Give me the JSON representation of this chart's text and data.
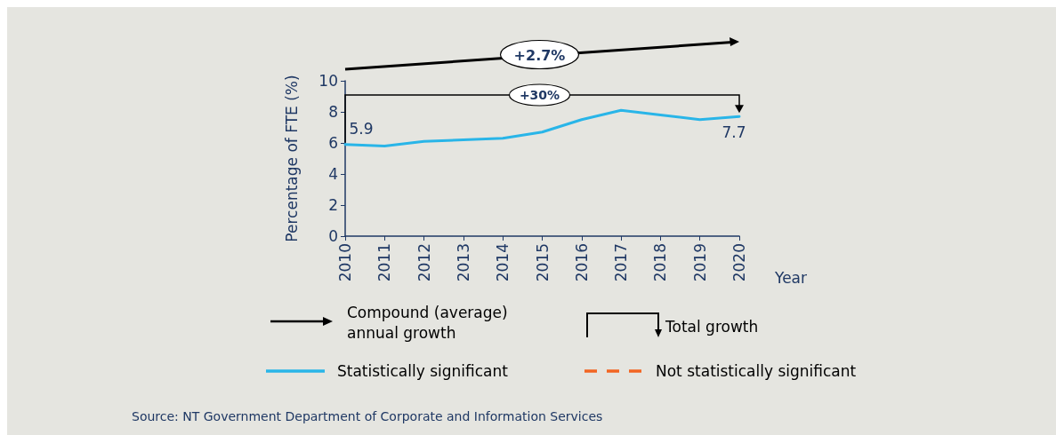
{
  "chart_data": {
    "type": "line",
    "xlabel": "Year",
    "ylabel": "Percentage of FTE (%)",
    "categories": [
      "2010",
      "2011",
      "2012",
      "2013",
      "2014",
      "2015",
      "2016",
      "2017",
      "2018",
      "2019",
      "2020"
    ],
    "ylim": [
      0,
      10
    ],
    "yticks": [
      0,
      2,
      4,
      6,
      8,
      10
    ],
    "grid": false,
    "legend": "bottom",
    "marker": "none",
    "series": [
      {
        "name": "Statistically significant",
        "color": "#29b5e8",
        "line_style": "solid",
        "values": [
          5.9,
          5.8,
          6.1,
          6.2,
          6.3,
          6.7,
          7.5,
          8.1,
          7.8,
          7.5,
          7.7
        ],
        "value_labels": [
          "5.9",
          null,
          null,
          null,
          null,
          null,
          null,
          null,
          null,
          null,
          "7.7"
        ]
      },
      {
        "name": "Not statistically significant",
        "color": "#f26522",
        "line_style": "dashed",
        "values": [
          null,
          null,
          null,
          null,
          null,
          null,
          null,
          null,
          null,
          null,
          null
        ]
      }
    ],
    "annotations": [
      "+2.7%",
      "+30%",
      "Compound (average) annual growth",
      "Total growth",
      "Source: NT Government Department of Corporate and Information Services"
    ]
  }
}
